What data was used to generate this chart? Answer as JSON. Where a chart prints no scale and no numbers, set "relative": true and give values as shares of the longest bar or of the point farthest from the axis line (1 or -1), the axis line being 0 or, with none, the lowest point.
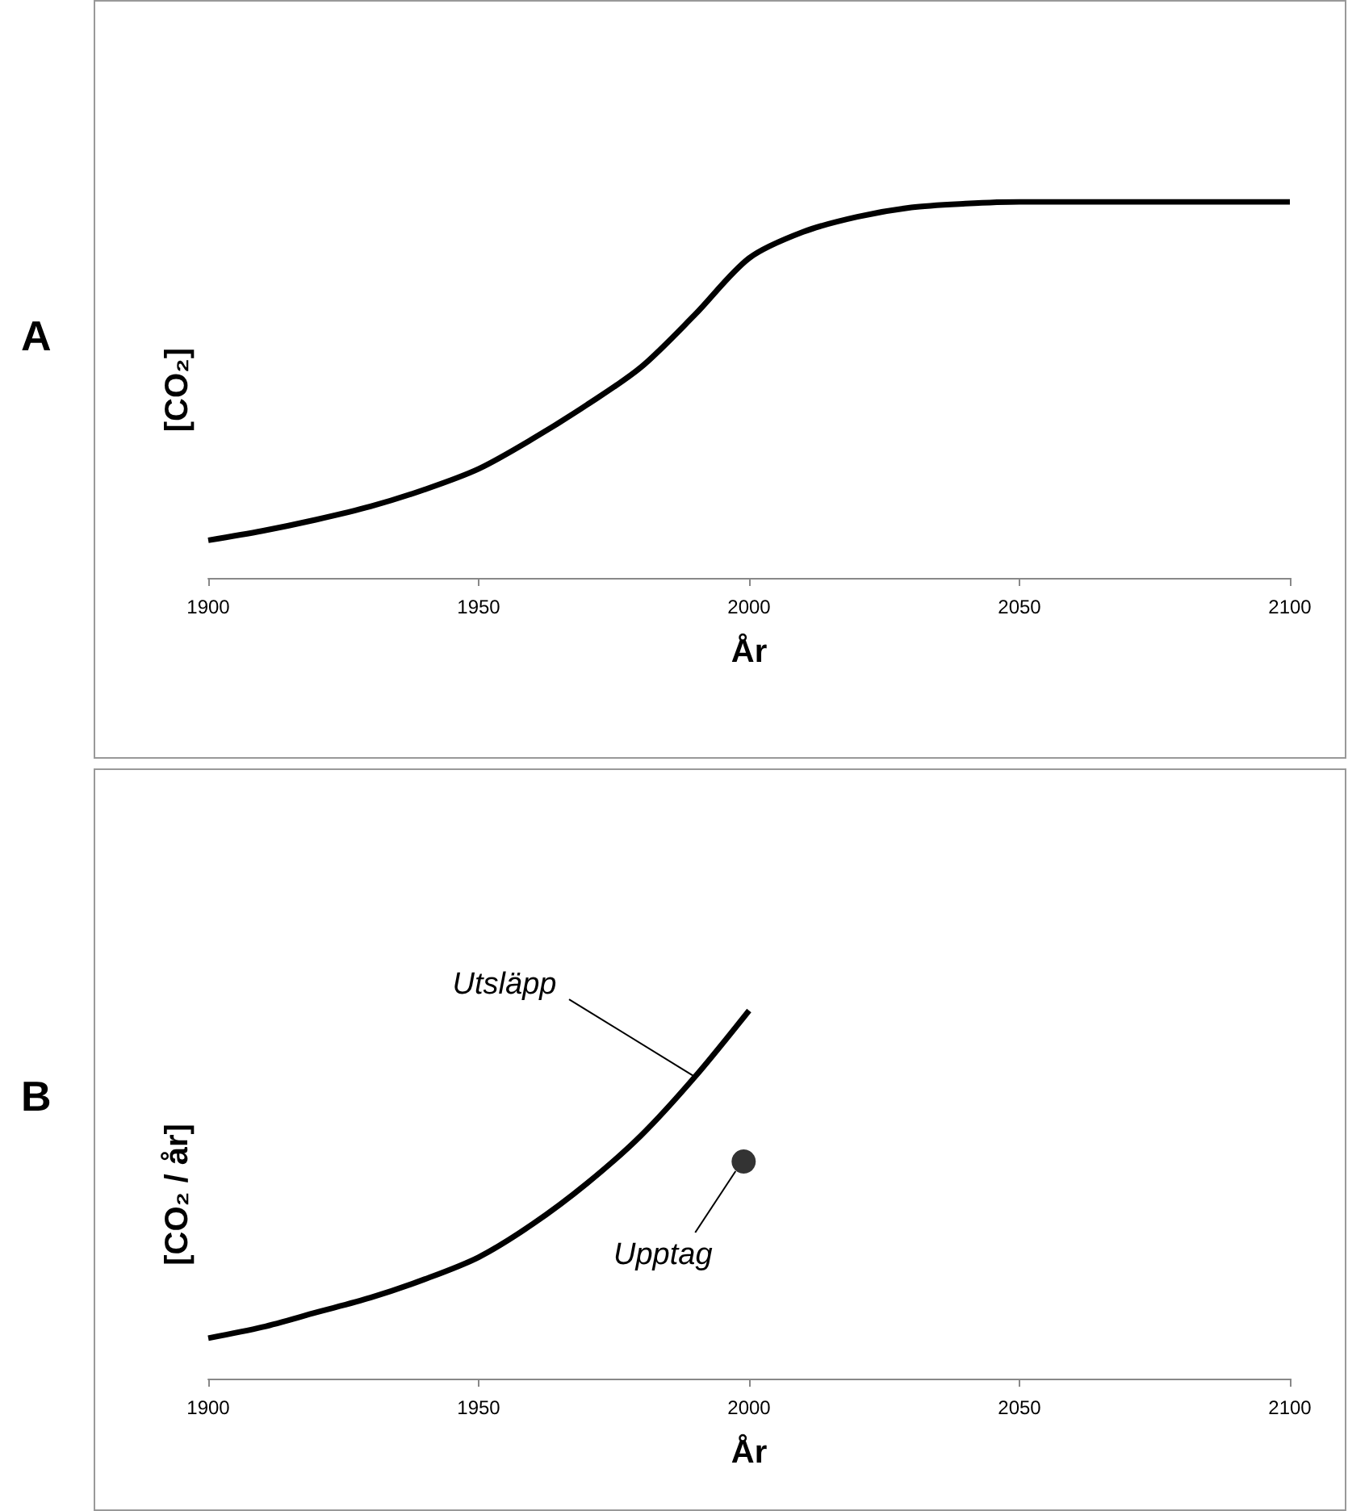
{
  "chart_data": [
    {
      "type": "line",
      "title": "A",
      "xlabel": "År",
      "ylabel": "[CO₂]",
      "relative": true,
      "xlim": [
        1900,
        2100
      ],
      "xticks": [
        1900,
        1950,
        2000,
        2050,
        2100
      ],
      "marker": "none",
      "series": [
        {
          "color": "#000000",
          "x": [
            1900,
            1910,
            1920,
            1930,
            1940,
            1950,
            1960,
            1970,
            1980,
            1990,
            2000,
            2010,
            2020,
            2030,
            2040,
            2050,
            2060,
            2070,
            2080,
            2090,
            2100
          ],
          "values": [
            0.1,
            0.125,
            0.155,
            0.19,
            0.235,
            0.29,
            0.37,
            0.46,
            0.56,
            0.7,
            0.85,
            0.92,
            0.96,
            0.985,
            0.995,
            1,
            1,
            1,
            1,
            1,
            1
          ]
        }
      ]
    },
    {
      "type": "line",
      "title": "B",
      "xlabel": "År",
      "ylabel": "[CO₂ / år]",
      "relative": true,
      "xlim": [
        1900,
        2100
      ],
      "xticks": [
        1900,
        1950,
        2000,
        2050,
        2100
      ],
      "series": [
        {
          "name": "Utsläpp",
          "color": "#000000",
          "marker": "none",
          "x": [
            1900,
            1910,
            1920,
            1930,
            1940,
            1950,
            1960,
            1970,
            1980,
            1990,
            2000
          ],
          "values": [
            0.11,
            0.14,
            0.18,
            0.22,
            0.27,
            0.33,
            0.42,
            0.53,
            0.66,
            0.82,
            1
          ]
        },
        {
          "name": "Upptag",
          "type": "scatter",
          "color": "#000000",
          "marker": "circle",
          "x": [
            1999
          ],
          "values": [
            0.59
          ]
        }
      ]
    }
  ]
}
